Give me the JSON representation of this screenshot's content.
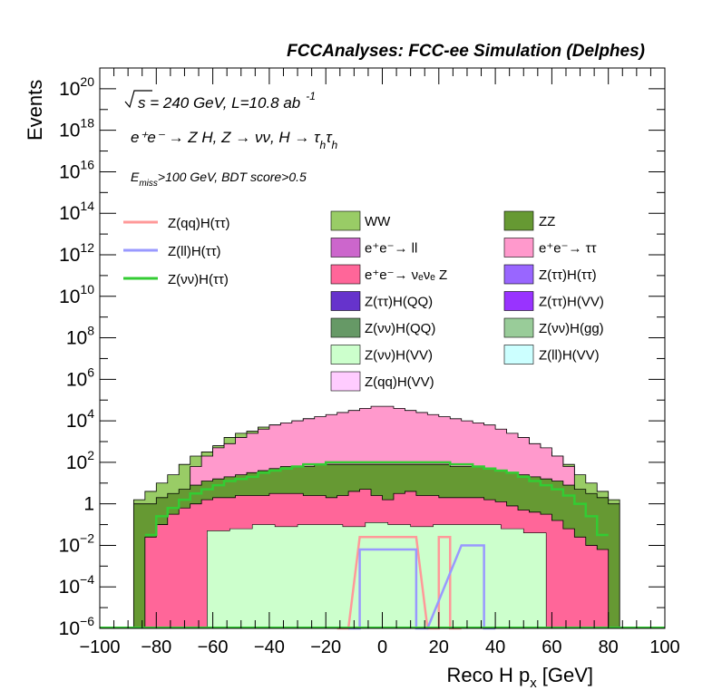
{
  "chart_data": {
    "type": "area",
    "stacked": true,
    "log_y": true,
    "title": "FCCAnalyses: FCC-ee Simulation (Delphes)",
    "xlabel": "Reco H p",
    "xlabel_sub": "x",
    "xlabel_unit": "[GeV]",
    "ylabel": "Events",
    "xlim": [
      -100,
      100
    ],
    "ylim_exp": [
      -6,
      21
    ],
    "x_ticks": [
      "−100",
      "−80",
      "−60",
      "−40",
      "−20",
      "0",
      "20",
      "40",
      "60",
      "80",
      "100"
    ],
    "y_ticks": [
      {
        "exp": -6,
        "base": "10",
        "sup": "−6"
      },
      {
        "exp": -4,
        "base": "10",
        "sup": "−4"
      },
      {
        "exp": -2,
        "base": "10",
        "sup": "−2"
      },
      {
        "exp": 0,
        "base": "1",
        "sup": ""
      },
      {
        "exp": 2,
        "base": "10",
        "sup": "2"
      },
      {
        "exp": 4,
        "base": "10",
        "sup": "4"
      },
      {
        "exp": 6,
        "base": "10",
        "sup": "6"
      },
      {
        "exp": 8,
        "base": "10",
        "sup": "8"
      },
      {
        "exp": 10,
        "base": "10",
        "sup": "10"
      },
      {
        "exp": 12,
        "base": "10",
        "sup": "12"
      },
      {
        "exp": 14,
        "base": "10",
        "sup": "14"
      },
      {
        "exp": 16,
        "base": "10",
        "sup": "16"
      },
      {
        "exp": 18,
        "base": "10",
        "sup": "18"
      },
      {
        "exp": 20,
        "base": "10",
        "sup": "20"
      }
    ],
    "annotations": {
      "energy": "s = 240 GeV, L=10.8 ab",
      "energy_sup": "-1",
      "process": "e⁺e⁻ → Z H, Z → νν, H → τ",
      "process_sub1": "h",
      "process_tau": "τ",
      "process_sub2": "h",
      "cut_prefix": "E",
      "cut_sub": "miss",
      "cut_rest": ">100 GeV, BDT score>0.5"
    },
    "stack_layers": [
      {
        "name": "WW",
        "color": "#99cc66",
        "x": [
          -86,
          -82,
          -78,
          -74,
          -70,
          -66,
          -62,
          -58,
          -54,
          -50,
          -46,
          -42,
          -38,
          -34,
          -30,
          -26,
          -22,
          -18,
          -14,
          -10,
          -6,
          -2,
          2,
          6,
          10,
          14,
          18,
          22,
          26,
          30,
          34,
          38,
          42,
          46,
          50,
          54,
          58,
          62,
          66,
          70,
          74,
          78,
          82
        ],
        "values_exp": [
          0.2,
          0.6,
          1.0,
          1.4,
          1.9,
          2.3,
          2.5,
          2.8,
          3.2,
          3.4,
          3.5,
          3.7,
          3.8,
          3.9,
          4.0,
          4.1,
          4.1,
          4.2,
          4.2,
          4.3,
          4.3,
          4.3,
          4.3,
          4.3,
          4.3,
          4.2,
          4.1,
          4.1,
          4.0,
          3.9,
          3.8,
          3.7,
          3.5,
          3.4,
          3.2,
          2.8,
          2.5,
          2.3,
          1.9,
          1.4,
          1.0,
          0.6,
          0.2
        ]
      },
      {
        "name": "e⁺e⁻→ ττ",
        "color": "#ff99cc",
        "x": [
          -66,
          -62,
          -58,
          -54,
          -50,
          -46,
          -42,
          -38,
          -34,
          -30,
          -26,
          -22,
          -18,
          -14,
          -10,
          -6,
          -2,
          2,
          6,
          10,
          14,
          18,
          22,
          26,
          30,
          34,
          38,
          42,
          46,
          50,
          54,
          58,
          62,
          66
        ],
        "values_exp": [
          1.8,
          2.3,
          2.7,
          2.9,
          3.2,
          3.4,
          3.6,
          3.8,
          3.9,
          4.0,
          4.1,
          4.2,
          4.3,
          4.4,
          4.5,
          4.6,
          4.7,
          4.7,
          4.6,
          4.5,
          4.4,
          4.3,
          4.2,
          4.1,
          4.0,
          3.9,
          3.8,
          3.6,
          3.4,
          3.2,
          2.9,
          2.7,
          2.3,
          1.8
        ]
      },
      {
        "name": "ZZ",
        "color": "#669933",
        "x": [
          -86,
          -82,
          -78,
          -74,
          -70,
          -66,
          -62,
          -58,
          -54,
          -50,
          -46,
          -42,
          -38,
          -34,
          -30,
          -26,
          -22,
          -18,
          -14,
          -10,
          -6,
          -2,
          2,
          6,
          10,
          14,
          18,
          22,
          26,
          30,
          34,
          38,
          42,
          46,
          50,
          54,
          58,
          62,
          66,
          70,
          74,
          78,
          82
        ],
        "values_exp": [
          0.0,
          0.0,
          0.3,
          0.5,
          0.7,
          0.9,
          1.1,
          1.2,
          1.3,
          1.4,
          1.5,
          1.6,
          1.7,
          1.8,
          1.8,
          1.8,
          1.9,
          1.9,
          1.9,
          1.9,
          1.9,
          1.9,
          1.9,
          1.9,
          1.9,
          1.9,
          1.9,
          1.9,
          1.8,
          1.8,
          1.8,
          1.7,
          1.6,
          1.5,
          1.4,
          1.3,
          1.2,
          1.1,
          0.9,
          0.7,
          0.5,
          0.3,
          0.0
        ]
      },
      {
        "name": "e⁺e⁻→ νₑνₑ Z",
        "color": "#ff6699",
        "x": [
          -82,
          -78,
          -74,
          -70,
          -66,
          -62,
          -58,
          -54,
          -50,
          -46,
          -42,
          -38,
          -34,
          -30,
          -26,
          -22,
          -18,
          -14,
          -10,
          -6,
          -2,
          2,
          6,
          10,
          14,
          18,
          22,
          26,
          30,
          34,
          38,
          42,
          46,
          50,
          54,
          58,
          62,
          66,
          70,
          74,
          78
        ],
        "values_exp": [
          -1.6,
          -1.0,
          -0.5,
          -0.2,
          0.0,
          0.2,
          0.3,
          0.3,
          0.4,
          0.4,
          0.4,
          0.5,
          0.5,
          0.5,
          0.4,
          0.4,
          0.3,
          0.4,
          0.6,
          0.7,
          0.4,
          0.2,
          0.5,
          0.6,
          0.4,
          0.4,
          0.3,
          0.3,
          0.3,
          0.3,
          0.2,
          0.1,
          -0.1,
          -0.3,
          -0.4,
          -0.5,
          -0.8,
          -1.2,
          -1.6,
          -2.0,
          -2.2
        ]
      }
    ],
    "small_bands": [
      {
        "name": "Z(νν)H(QQ)",
        "color": "#669966",
        "x": [
          -58,
          -50,
          -42,
          -34,
          -26,
          -18,
          -10,
          -2,
          6,
          14,
          22,
          30,
          38,
          46,
          54
        ],
        "values_exp": [
          -2.2,
          -2.0,
          -1.6,
          -1.6,
          -1.4,
          -1.7,
          -1.8,
          -1.5,
          -1.7,
          -1.9,
          -1.6,
          -1.6,
          -1.7,
          -2.0,
          -2.3
        ]
      },
      {
        "name": "Z(ττ)H(VV)",
        "color": "#9933ff",
        "x": [
          -58,
          -50,
          -42,
          -34,
          -26,
          -18,
          -10,
          -2,
          6,
          14,
          22,
          30,
          38,
          46,
          54
        ],
        "values_exp": [
          -1.6,
          -1.5,
          -1.3,
          -1.3,
          -1.2,
          -1.3,
          -1.3,
          -1.1,
          -1.3,
          -1.4,
          -1.2,
          -1.2,
          -1.3,
          -1.5,
          -1.7
        ]
      },
      {
        "name": "Z(νν)H(VV)",
        "color": "#ccffcc",
        "x": [
          -58,
          -50,
          -42,
          -34,
          -26,
          -18,
          -10,
          -2,
          6,
          14,
          22,
          30,
          38,
          46,
          54
        ],
        "values_exp": [
          -1.3,
          -1.2,
          -1.0,
          -1.1,
          -1.0,
          -1.0,
          -1.1,
          -0.9,
          -1.0,
          -1.1,
          -1.0,
          -1.0,
          -1.0,
          -1.2,
          -1.4
        ]
      }
    ],
    "line_series": [
      {
        "name": "Z(qq)H(ττ)",
        "color": "#ff9999",
        "x": [
          -14,
          -6,
          2,
          10,
          18,
          22,
          26
        ],
        "values_exp": [
          -6.0,
          -1.6,
          -1.6,
          -1.6,
          -6.0,
          -1.6,
          -6.0
        ]
      },
      {
        "name": "Z(ll)H(ττ)",
        "color": "#9999ff",
        "x": [
          -10,
          -6,
          2,
          10,
          14,
          30,
          34,
          38
        ],
        "values_exp": [
          -6.0,
          -2.2,
          -2.2,
          -2.2,
          -6.0,
          -2.0,
          -2.0,
          -6.0
        ]
      },
      {
        "name": "Z(νν)H(ττ)",
        "color": "#33cc33",
        "x": [
          -82,
          -78,
          -74,
          -70,
          -66,
          -62,
          -58,
          -54,
          -50,
          -46,
          -42,
          -38,
          -34,
          -30,
          -26,
          -22,
          -18,
          -14,
          -10,
          -6,
          -2,
          2,
          6,
          10,
          14,
          18,
          22,
          26,
          30,
          34,
          38,
          42,
          46,
          50,
          54,
          58,
          62,
          66,
          70,
          74,
          78
        ],
        "values_exp": [
          -1.5,
          -0.6,
          -0.2,
          0.2,
          0.5,
          0.7,
          0.9,
          1.1,
          1.2,
          1.3,
          1.5,
          1.6,
          1.7,
          1.8,
          1.9,
          1.9,
          2.0,
          2.0,
          2.0,
          2.0,
          2.0,
          2.0,
          2.0,
          2.0,
          2.0,
          2.0,
          2.0,
          1.9,
          1.9,
          1.8,
          1.7,
          1.6,
          1.5,
          1.3,
          1.1,
          0.9,
          0.7,
          0.4,
          0.0,
          -0.6,
          -1.5
        ]
      }
    ],
    "legend_left": [
      {
        "label": "Z(qq)H(ττ)",
        "color": "#ff9999"
      },
      {
        "label": "Z(ll)H(ττ)",
        "color": "#9999ff"
      },
      {
        "label": "Z(νν)H(ττ)",
        "color": "#33cc33"
      }
    ],
    "legend_mid": [
      {
        "label": "WW",
        "color": "#99cc66"
      },
      {
        "label": "e⁺e⁻→ ll",
        "color": "#cc66cc"
      },
      {
        "label": "e⁺e⁻→ νₑνₑ Z",
        "color": "#ff6699"
      },
      {
        "label": "Z(ττ)H(QQ)",
        "color": "#6633cc"
      },
      {
        "label": "Z(νν)H(QQ)",
        "color": "#669966"
      },
      {
        "label": "Z(νν)H(VV)",
        "color": "#ccffcc"
      },
      {
        "label": "Z(qq)H(VV)",
        "color": "#ffccff"
      }
    ],
    "legend_right": [
      {
        "label": "ZZ",
        "color": "#669933"
      },
      {
        "label": "e⁺e⁻→ ττ",
        "color": "#ff99cc"
      },
      {
        "label": "Z(ττ)H(ττ)",
        "color": "#9966ff"
      },
      {
        "label": "Z(ττ)H(VV)",
        "color": "#9933ff"
      },
      {
        "label": "Z(νν)H(gg)",
        "color": "#99cc99"
      },
      {
        "label": "Z(ll)H(VV)",
        "color": "#ccffff"
      }
    ]
  }
}
